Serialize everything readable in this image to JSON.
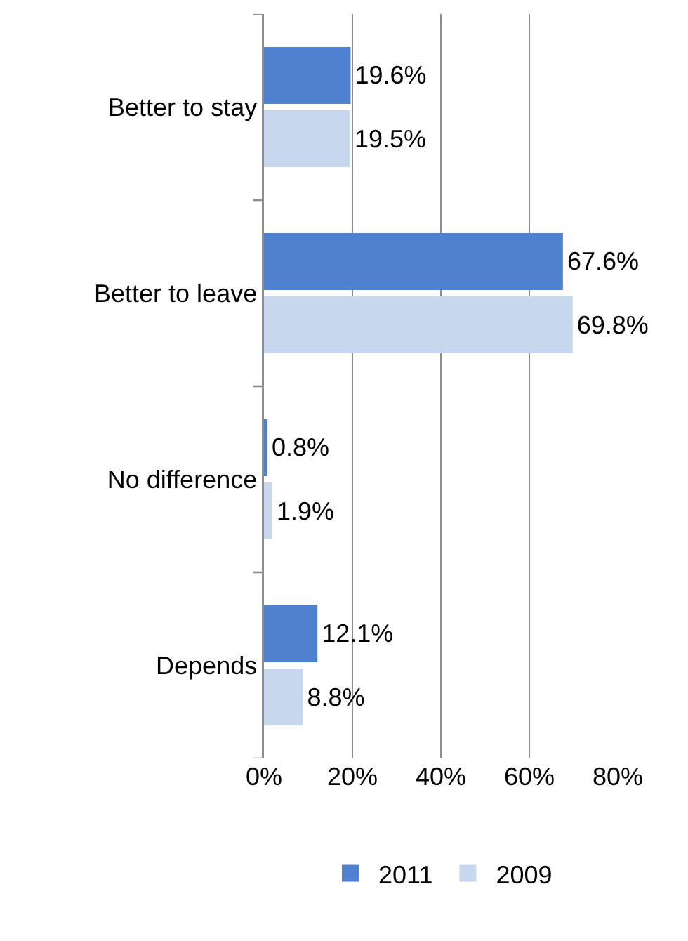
{
  "chart_data": {
    "type": "bar",
    "orientation": "horizontal",
    "categories": [
      "Better to stay",
      "Better to leave",
      "No difference",
      "Depends"
    ],
    "series": [
      {
        "name": "2011",
        "color": "#4f81d0",
        "values": [
          19.6,
          67.6,
          0.8,
          12.1
        ],
        "value_labels": [
          "19.6%",
          "67.6%",
          "0.8%",
          "12.1%"
        ]
      },
      {
        "name": "2009",
        "color": "#c6d7ee",
        "values": [
          19.5,
          69.8,
          1.9,
          8.8
        ],
        "value_labels": [
          "19.5%",
          "69.8%",
          "1.9%",
          "8.8%"
        ]
      }
    ],
    "xlim": [
      0,
      80
    ],
    "xticks": [
      {
        "value": 0,
        "label": "0%"
      },
      {
        "value": 20,
        "label": "20%"
      },
      {
        "value": 40,
        "label": "40%"
      },
      {
        "value": 60,
        "label": "60%"
      },
      {
        "value": 80,
        "label": "80%"
      }
    ],
    "grid": "x",
    "legend": "bottom"
  }
}
